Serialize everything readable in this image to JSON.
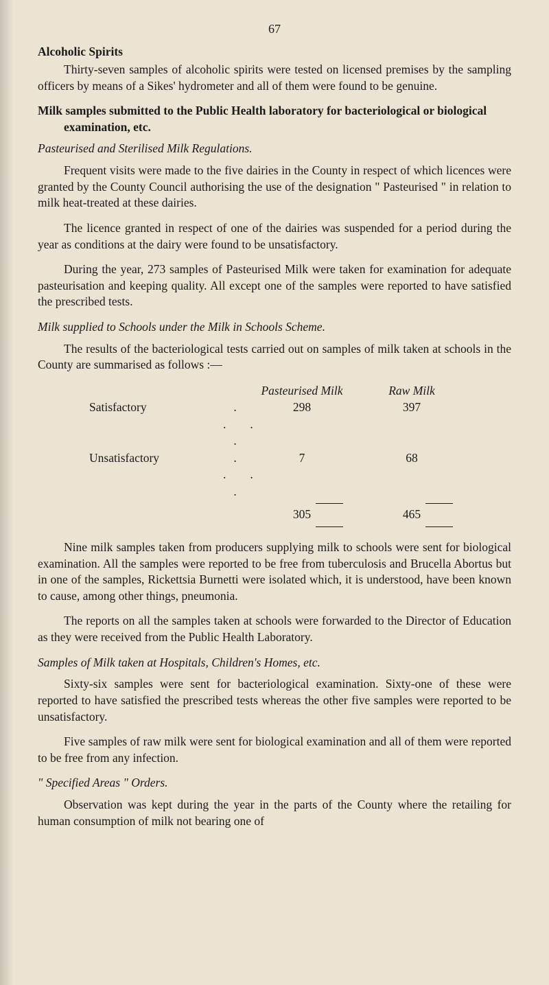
{
  "page_number": "67",
  "s1": {
    "heading": "Alcoholic Spirits",
    "para1": "Thirty-seven samples of alcoholic spirits were tested on licensed premises by the sampling officers by means of a Sikes' hydrometer and all of them were found to be genuine."
  },
  "s2": {
    "heading": "Milk samples submitted to the Public Health laboratory for bacteriological or biological examination, etc.",
    "sub1": {
      "heading": "Pasteurised and Sterilised Milk Regulations.",
      "para1": "Frequent visits were made to the five dairies in the County in respect of which licences were granted by the County Council authorising the use of the designation \" Pasteurised \" in relation to milk heat-treated at these dairies.",
      "para2": "The licence granted in respect of one of the dairies was suspended for a period during the year as conditions at the dairy were found to be unsatisfactory.",
      "para3": "During the year, 273 samples of Pasteurised Milk were taken for examination for adequate pasteurisation and keeping quality. All except one of the samples were reported to have satisfied the prescribed tests."
    },
    "sub2": {
      "heading": "Milk supplied to Schools under the Milk in Schools Scheme.",
      "para1": "The results of the bacteriological tests carried out on samples of milk taken at schools in the County are summarised as follows :—",
      "table": {
        "col1_header": "Pasteurised Milk",
        "col2_header": "Raw Milk",
        "rows": [
          {
            "label": "Satisfactory",
            "v1": "298",
            "v2": "397"
          },
          {
            "label": "Unsatisfactory",
            "v1": "7",
            "v2": "68"
          }
        ],
        "total": {
          "v1": "305",
          "v2": "465"
        }
      },
      "para2": "Nine milk samples taken from producers supplying milk to schools were sent for biological examination. All the samples were reported to be free from tuberculosis and Brucella Abortus but in one of the samples, Rickettsia Burnetti were isolated which, it is understood, have been known to cause, among other things, pneumonia.",
      "para3": "The reports on all the samples taken at schools were forwarded to the Director of Education as they were received from the Public Health Laboratory."
    },
    "sub3": {
      "heading": "Samples of Milk taken at Hospitals, Children's Homes, etc.",
      "para1": "Sixty-six samples were sent for bacteriological examination. Sixty-one of these were reported to have satisfied the prescribed tests whereas the other five samples were reported to be unsatisfactory.",
      "para2": "Five samples of raw milk were sent for biological examination and all of them were reported to be free from any infection."
    },
    "sub4": {
      "heading": "\" Specified Areas \" Orders.",
      "para1": "Observation was kept during the year in the parts of the County where the retailing for human consumption of milk not bearing one of"
    }
  }
}
